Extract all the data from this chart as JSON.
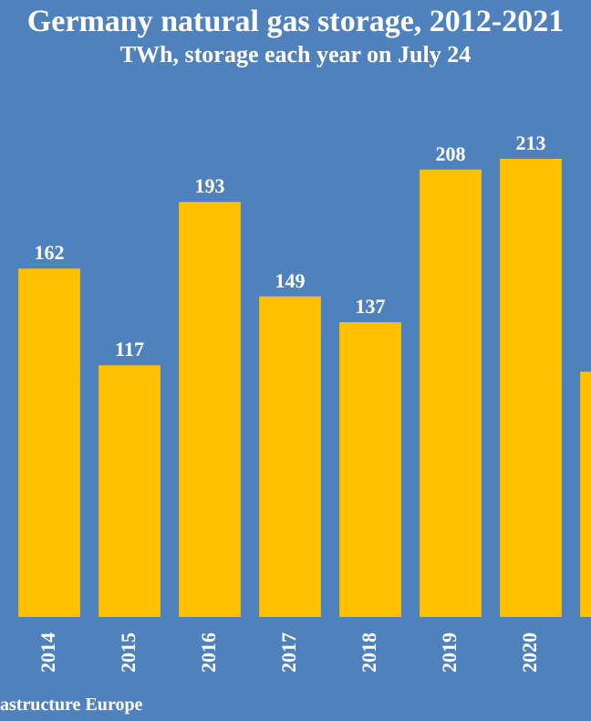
{
  "chart_data": {
    "type": "bar",
    "title": "Germany natural gas storage, 2012-2021",
    "subtitle": "TWh, storage each year on July 24",
    "categories": [
      "2014",
      "2015",
      "2016",
      "2017",
      "2018",
      "2019",
      "2020",
      null
    ],
    "values": [
      162,
      117,
      193,
      149,
      137,
      208,
      213,
      114
    ],
    "value_labels": [
      "162",
      "117",
      "193",
      "149",
      "137",
      "208",
      "213",
      null
    ],
    "color": "#ffc000",
    "grid": false,
    "tick_labels": "x",
    "annotations": [
      "astructure Europe"
    ]
  }
}
